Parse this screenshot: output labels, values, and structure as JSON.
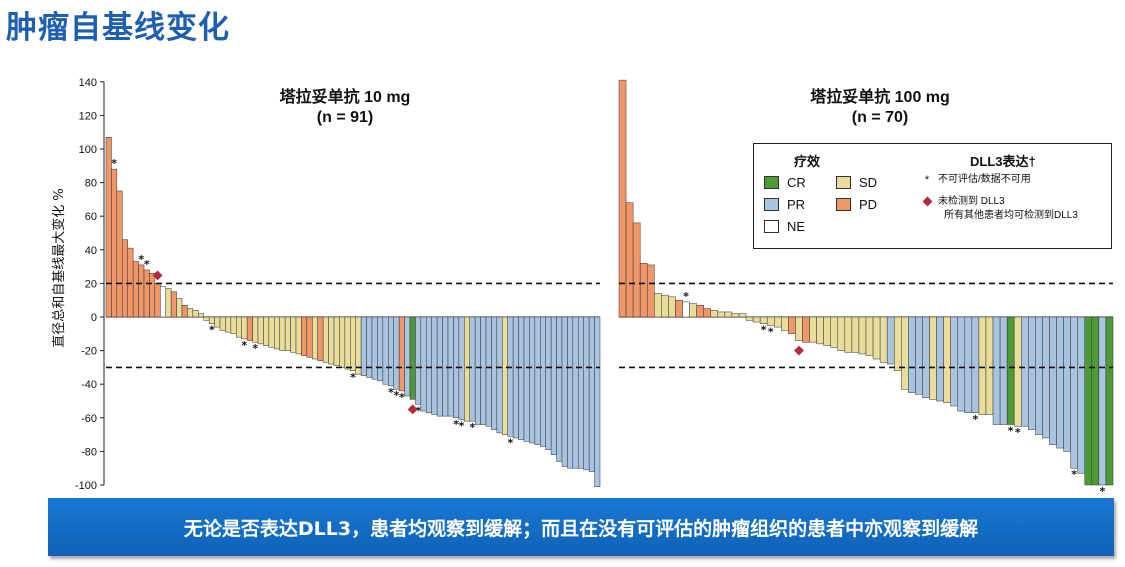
{
  "page_title": "肿瘤自基线变化",
  "banner_text": "无论是否表达DLL3，患者均观察到缓解；而且在没有可评估的肿瘤组织的患者中亦观察到缓解",
  "colors": {
    "title": "#1F5FB0",
    "CR": "#4E9A37",
    "PR": "#A9C4E0",
    "NE": "#FFFFFF",
    "SD": "#E8DD9A",
    "PD": "#F0976A",
    "diamond": "#B5293D"
  },
  "legend": {
    "response_header": "疗效",
    "dll3_header": "DLL3表达†",
    "items": [
      {
        "key": "CR",
        "label": "CR"
      },
      {
        "key": "PR",
        "label": "PR"
      },
      {
        "key": "NE",
        "label": "NE"
      },
      {
        "key": "SD",
        "label": "SD"
      },
      {
        "key": "PD",
        "label": "PD"
      }
    ],
    "star_symbol": "*",
    "star_label": "不可评估/数据不可用",
    "diamond_label": "未检测到 DLL3",
    "all_others_label": "所有其他患者均可检测到DLL3"
  },
  "chart_data": {
    "type": "bar",
    "subtype": "waterfall",
    "ylabel": "直径总和自基线最大变化 %",
    "ylim": [
      -100,
      140
    ],
    "yticks": [
      -100,
      -80,
      -60,
      -40,
      -20,
      0,
      20,
      40,
      60,
      80,
      100,
      120,
      140
    ],
    "reference_lines": [
      20,
      -30
    ],
    "panels": [
      {
        "title_line1": "塔拉妥单抗 10 mg",
        "title_line2": "(n = 91)",
        "values": [
          107,
          88,
          75,
          46,
          41,
          33,
          31,
          28,
          26,
          20,
          18,
          17,
          15,
          11,
          7,
          5,
          4,
          2,
          -2,
          -4,
          -6,
          -8,
          -9,
          -10,
          -12,
          -13,
          -14,
          -15,
          -16,
          -17,
          -18,
          -19,
          -20,
          -20,
          -21,
          -22,
          -23,
          -24,
          -25,
          -26,
          -27,
          -28,
          -29,
          -30,
          -31,
          -32,
          -34,
          -35,
          -36,
          -37,
          -38,
          -40,
          -41,
          -43,
          -44,
          -47,
          -49,
          -52,
          -56,
          -57,
          -58,
          -59,
          -59,
          -59,
          -60,
          -61,
          -62,
          -62,
          -64,
          -64,
          -65,
          -67,
          -69,
          -70,
          -71,
          -72,
          -73,
          -74,
          -75,
          -76,
          -77,
          -79,
          -82,
          -86,
          -89,
          -90,
          -90,
          -90,
          -91,
          -92,
          -101
        ],
        "categories": [
          "PD",
          "PD",
          "PD",
          "PD",
          "PD",
          "PD",
          "PD",
          "PD",
          "PD",
          "PD",
          "NE",
          "SD",
          "PD",
          "SD",
          "PD",
          "SD",
          "SD",
          "SD",
          "SD",
          "SD",
          "SD",
          "SD",
          "SD",
          "SD",
          "SD",
          "SD",
          "PD",
          "SD",
          "SD",
          "SD",
          "SD",
          "SD",
          "SD",
          "SD",
          "SD",
          "SD",
          "PD",
          "PD",
          "SD",
          "PD",
          "SD",
          "SD",
          "SD",
          "SD",
          "SD",
          "SD",
          "SD",
          "PR",
          "PR",
          "PR",
          "PR",
          "PR",
          "PR",
          "PR",
          "PD",
          "PR",
          "CR",
          "PR",
          "PR",
          "PR",
          "PR",
          "PR",
          "PR",
          "PR",
          "PR",
          "PR",
          "SD",
          "PR",
          "PR",
          "PR",
          "PR",
          "PR",
          "PR",
          "SD",
          "PR",
          "PR",
          "PR",
          "PR",
          "PR",
          "PR",
          "PR",
          "PR",
          "PR",
          "PR",
          "PR",
          "PR",
          "PR",
          "PR",
          "PR",
          "PR",
          "PR"
        ],
        "stars_at": [
          1,
          6,
          7,
          19,
          25,
          27,
          45,
          52,
          53,
          54,
          57,
          64,
          65,
          67,
          74
        ],
        "diamonds_at": [
          9,
          56
        ]
      },
      {
        "title_line1": "塔拉妥单抗 100 mg",
        "title_line2": "(n = 70)",
        "values": [
          141,
          68,
          56,
          32,
          31,
          14,
          13,
          12,
          10,
          9,
          8,
          7,
          5,
          4,
          3,
          3,
          2,
          2,
          -2,
          -3,
          -4,
          -5,
          -6,
          -8,
          -10,
          -14,
          -15,
          -15,
          -16,
          -17,
          -18,
          -20,
          -21,
          -21,
          -22,
          -23,
          -25,
          -27,
          -28,
          -32,
          -43,
          -45,
          -46,
          -48,
          -49,
          -50,
          -51,
          -53,
          -56,
          -57,
          -57,
          -58,
          -58,
          -64,
          -64,
          -64,
          -65,
          -65,
          -67,
          -70,
          -72,
          -76,
          -78,
          -80,
          -90,
          -93,
          -100,
          -100,
          -100,
          -100
        ],
        "categories": [
          "PD",
          "PD",
          "PD",
          "PD",
          "PD",
          "SD",
          "SD",
          "SD",
          "PD",
          "NE",
          "SD",
          "PD",
          "PD",
          "SD",
          "SD",
          "SD",
          "SD",
          "SD",
          "SD",
          "SD",
          "SD",
          "SD",
          "SD",
          "SD",
          "PD",
          "SD",
          "PD",
          "SD",
          "SD",
          "SD",
          "SD",
          "SD",
          "SD",
          "SD",
          "SD",
          "SD",
          "SD",
          "SD",
          "PR",
          "SD",
          "SD",
          "PR",
          "PR",
          "PR",
          "SD",
          "PR",
          "SD",
          "PR",
          "PR",
          "PR",
          "PR",
          "SD",
          "SD",
          "PR",
          "PR",
          "CR",
          "SD",
          "PR",
          "PR",
          "PR",
          "PR",
          "PR",
          "PR",
          "PR",
          "PR",
          "PR",
          "CR",
          "CR",
          "PR",
          "CR"
        ],
        "stars_at": [
          9,
          20,
          21,
          50,
          55,
          56,
          64,
          68
        ],
        "diamonds_at": [
          25
        ]
      }
    ]
  }
}
